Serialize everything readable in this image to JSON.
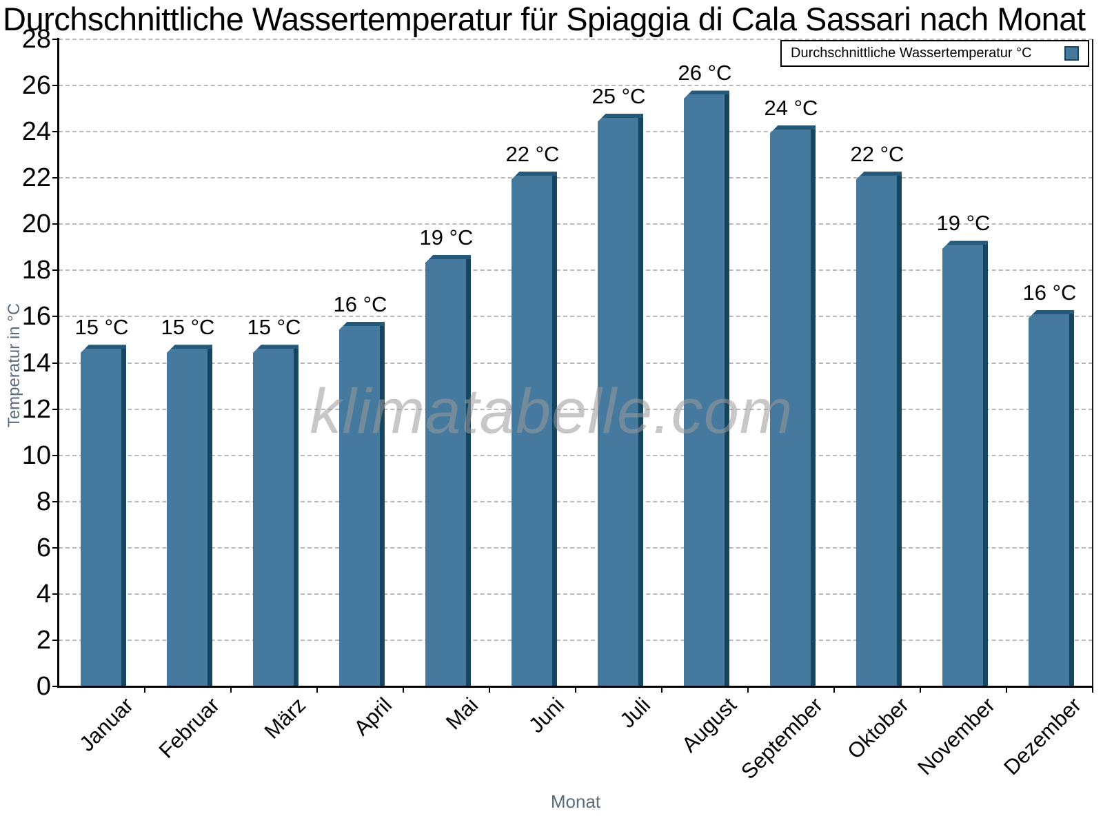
{
  "chart_data": {
    "type": "bar",
    "title": "Durchschnittliche Wassertemperatur für Spiaggia di Cala Sassari nach Monat",
    "categories": [
      "Januar",
      "Februar",
      "März",
      "April",
      "Mai",
      "Juni",
      "Juli",
      "August",
      "September",
      "Oktober",
      "November",
      "Dezember"
    ],
    "values": [
      14.6,
      14.6,
      14.6,
      15.6,
      18.5,
      22.1,
      24.6,
      25.6,
      24.1,
      22.1,
      19.1,
      16.1
    ],
    "bar_labels": [
      "15 °C",
      "15 °C",
      "15 °C",
      "16 °C",
      "19 °C",
      "22 °C",
      "25 °C",
      "26 °C",
      "24 °C",
      "22 °C",
      "19 °C",
      "16 °C"
    ],
    "xlabel": "Monat",
    "ylabel": "Temperatur in °C",
    "ylim": [
      0,
      28
    ],
    "ytick_step": 2,
    "grid": "horizontal-dashed",
    "legend": {
      "label": "Durchschnittliche Wassertemperatur °C",
      "position": "top-right"
    },
    "colors": {
      "bar_face": "#45799D",
      "bar_edge": "#16455F",
      "bar_top": "#24597A",
      "axis": "#000000",
      "grid": "#B9B9B9",
      "axis_title_text": "#5A6B7B"
    },
    "watermark": "klimatabelle.com"
  }
}
